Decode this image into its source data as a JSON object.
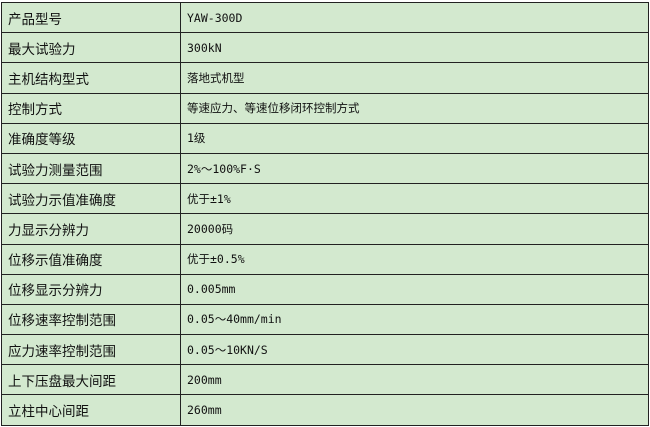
{
  "specs": [
    {
      "label": "产品型号",
      "value": "YAW-300D"
    },
    {
      "label": "最大试验力",
      "value": "300kN"
    },
    {
      "label": "主机结构型式",
      "value": "落地式机型"
    },
    {
      "label": "控制方式",
      "value": "等速应力、等速位移闭环控制方式"
    },
    {
      "label": "准确度等级",
      "value": "1级"
    },
    {
      "label": "试验力测量范围",
      "value": "2%～100%F·S"
    },
    {
      "label": "试验力示值准确度",
      "value": "优于±1%"
    },
    {
      "label": "力显示分辨力",
      "value": "20000码"
    },
    {
      "label": "位移示值准确度",
      "value": "优于±0.5%"
    },
    {
      "label": "位移显示分辨力",
      "value": "0.005mm"
    },
    {
      "label": "位移速率控制范围",
      "value": "0.05～40mm/min"
    },
    {
      "label": "应力速率控制范围",
      "value": "0.05～10KN/S"
    },
    {
      "label": "上下压盘最大间距",
      "value": "200mm"
    },
    {
      "label": "立柱中心间距",
      "value": "260mm"
    }
  ],
  "colors": {
    "background": "#d3e9cf",
    "border": "#222222"
  }
}
